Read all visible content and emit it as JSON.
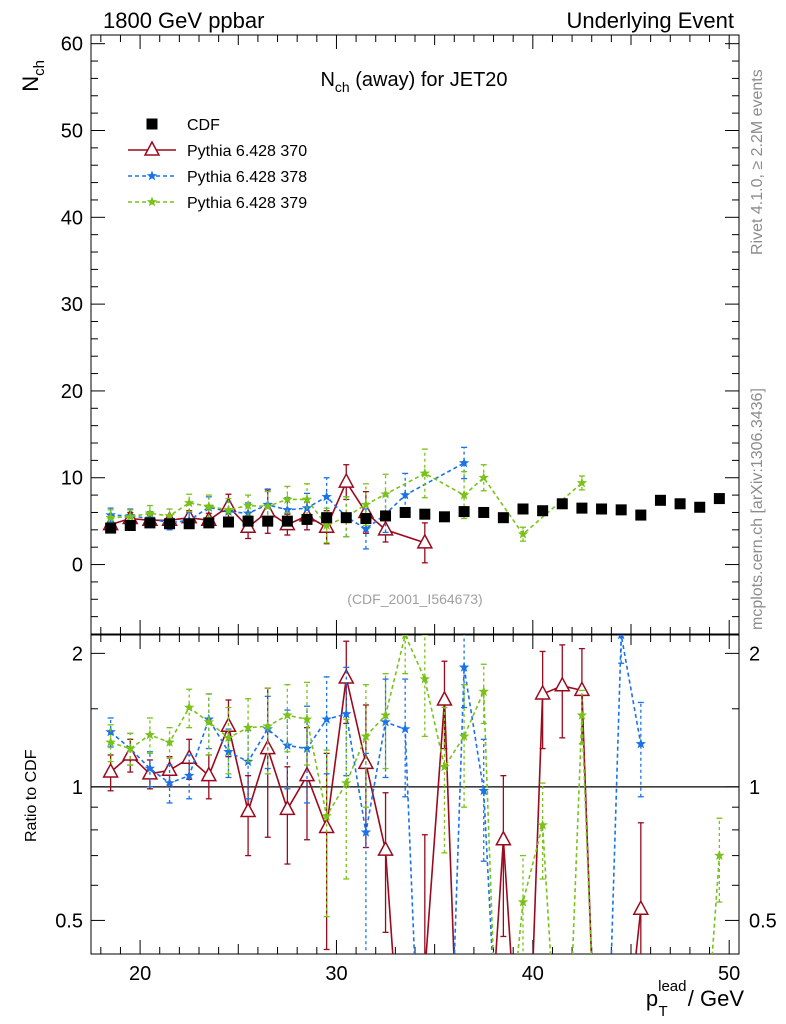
{
  "header": {
    "left": "1800 GeV ppbar",
    "right": "Underlying Event"
  },
  "side_labels": {
    "rivet": "Rivet 4.1.0, ≥ 2.2M events",
    "mcplots": "mcplots.cern.ch [arXiv:1306.3436]"
  },
  "colors": {
    "cdf": "#000000",
    "py370": "#9a0a1e",
    "py378": "#1a73e8",
    "py379": "#7ac21a"
  },
  "chart_data": [
    {
      "type": "scatter",
      "title_main": "N",
      "title_sub": "ch",
      "title_rest": " (away) for JET20",
      "ylabel_main": "N",
      "ylabel_sub": "ch",
      "analysis_id": "(CDF_2001_I564673)",
      "xlim": [
        17.5,
        50.5
      ],
      "ylim": [
        -8,
        61
      ],
      "yticks": [
        0,
        10,
        20,
        30,
        40,
        50,
        60
      ],
      "legend_position": "top-left",
      "series": [
        {
          "name": "CDF",
          "style": "data",
          "x": [
            18.5,
            19.5,
            20.5,
            21.5,
            22.5,
            23.5,
            24.5,
            25.5,
            26.5,
            27.5,
            28.5,
            29.5,
            30.5,
            31.5,
            32.5,
            33.5,
            34.5,
            35.5,
            36.5,
            37.5,
            38.5,
            39.5,
            40.5,
            41.5,
            42.5,
            43.5,
            44.5,
            45.5,
            46.5,
            47.5,
            48.5,
            49.5
          ],
          "y": [
            4.2,
            4.5,
            4.8,
            4.7,
            4.7,
            4.8,
            4.9,
            5.0,
            5.0,
            5.0,
            5.2,
            5.4,
            5.4,
            5.3,
            5.6,
            6.0,
            5.8,
            5.5,
            6.1,
            6.0,
            5.4,
            6.4,
            6.2,
            7.0,
            6.5,
            6.4,
            6.3,
            5.7,
            7.4,
            7.0,
            6.6,
            7.6
          ]
        },
        {
          "name": "Pythia 6.428 370",
          "style": "solid-triangle",
          "x": [
            18.5,
            19.5,
            20.5,
            21.5,
            22.5,
            23.5,
            24.5,
            25.5,
            26.5,
            27.5,
            28.5,
            29.5,
            30.5,
            31.5,
            32.5,
            34.5
          ],
          "y": [
            4.6,
            5.3,
            5.1,
            5.1,
            5.4,
            5.1,
            6.7,
            4.3,
            6.1,
            4.6,
            5.6,
            4.3,
            9.5,
            6.0,
            4.0,
            2.5
          ],
          "err": [
            0.8,
            0.7,
            0.6,
            0.6,
            0.8,
            0.8,
            1.4,
            1.3,
            2.5,
            1.2,
            1.6,
            1.9,
            2.0,
            2.4,
            1.4,
            2.3
          ]
        },
        {
          "name": "Pythia 6.428 378",
          "style": "dashed-star",
          "x": [
            18.5,
            19.5,
            20.5,
            21.5,
            22.5,
            23.5,
            24.5,
            25.5,
            26.5,
            27.5,
            28.5,
            29.5,
            30.5,
            31.5,
            32.5,
            33.5,
            36.5
          ],
          "y": [
            5.7,
            5.6,
            5.3,
            4.8,
            5.1,
            6.6,
            6.1,
            5.9,
            6.9,
            6.3,
            6.5,
            7.8,
            5.5,
            4.1,
            5.8,
            8.0,
            11.7
          ],
          "err": [
            0.8,
            0.8,
            0.8,
            0.8,
            0.9,
            1.2,
            1.1,
            1.2,
            1.8,
            1.4,
            1.7,
            2.2,
            2.3,
            2.3,
            2.1,
            2.5,
            1.8
          ]
        },
        {
          "name": "Pythia 6.428 379",
          "style": "dashed-star",
          "x": [
            18.5,
            19.5,
            20.5,
            21.5,
            22.5,
            23.5,
            24.5,
            25.5,
            26.5,
            27.5,
            28.5,
            29.5,
            30.5,
            31.5,
            32.5,
            34.5,
            36.5,
            37.5,
            39.5,
            42.5
          ],
          "y": [
            5.4,
            5.5,
            5.9,
            5.6,
            7.1,
            6.7,
            6.3,
            6.8,
            6.7,
            7.5,
            7.5,
            4.5,
            5.5,
            6.9,
            8.1,
            10.5,
            8.0,
            10.0,
            3.5,
            9.4
          ],
          "err": [
            0.9,
            0.8,
            0.9,
            0.8,
            1.0,
            1.3,
            1.3,
            1.2,
            1.7,
            1.5,
            1.8,
            2.0,
            2.3,
            2.4,
            2.3,
            2.8,
            2.7,
            1.5,
            0.8,
            0.8
          ]
        }
      ]
    },
    {
      "type": "line",
      "ylabel": "Ratio to CDF",
      "xlabel_main": "p",
      "xlabel_sup": "lead",
      "xlabel_sub": "T",
      "xlabel_rest": " / GeV",
      "xlim": [
        17.5,
        50.5
      ],
      "xticks": [
        20,
        30,
        40,
        50
      ],
      "ylim": [
        0.42,
        2.2
      ],
      "yticks": [
        0.5,
        1,
        2
      ],
      "reference_line": 1,
      "series": [
        {
          "name": "Pythia 6.428 370",
          "x": [
            18.5,
            19.5,
            20.5,
            21.5,
            22.5,
            23.5,
            24.5,
            25.5,
            26.5,
            27.5,
            28.5,
            29.5,
            30.5,
            31.5,
            32.5,
            34.5,
            35.5,
            38.5,
            40.5,
            41.5,
            42.5,
            45.5
          ],
          "y": [
            1.08,
            1.18,
            1.07,
            1.09,
            1.16,
            1.06,
            1.37,
            0.88,
            1.22,
            0.89,
            1.06,
            0.81,
            1.76,
            1.13,
            0.72,
            0.38,
            1.57,
            0.76,
            1.62,
            1.69,
            1.65,
            0.53
          ],
          "err": [
            0.1,
            0.1,
            0.08,
            0.08,
            0.12,
            0.12,
            0.2,
            0.18,
            0.45,
            0.22,
            0.3,
            0.38,
            0.37,
            0.4,
            0.25,
            0.4,
            0.35,
            0.3,
            0.4,
            0.4,
            0.4,
            0.3
          ]
        },
        {
          "name": "Pythia 6.428 378",
          "x": [
            18.5,
            19.5,
            20.5,
            21.5,
            22.5,
            23.5,
            24.5,
            25.5,
            26.5,
            27.5,
            28.5,
            29.5,
            30.5,
            31.5,
            32.5,
            33.5,
            36.5,
            37.5,
            44.5,
            45.5
          ],
          "y": [
            1.33,
            1.22,
            1.1,
            1.02,
            1.06,
            1.42,
            1.2,
            1.14,
            1.35,
            1.24,
            1.22,
            1.42,
            1.46,
            0.79,
            1.4,
            1.35,
            1.86,
            0.98,
            2.2,
            1.25
          ],
          "err": [
            0.1,
            0.1,
            0.1,
            0.1,
            0.12,
            0.2,
            0.15,
            0.2,
            0.25,
            0.25,
            0.3,
            0.35,
            0.4,
            0.4,
            0.35,
            0.4,
            0.35,
            0.3,
            0.3,
            0.3
          ]
        },
        {
          "name": "Pythia 6.428 379",
          "x": [
            18.5,
            19.5,
            20.5,
            21.5,
            22.5,
            23.5,
            24.5,
            25.5,
            26.5,
            27.5,
            28.5,
            29.5,
            30.5,
            31.5,
            32.5,
            33.5,
            34.5,
            35.5,
            36.5,
            37.5,
            39.5,
            40.5,
            42.5,
            49.5
          ],
          "y": [
            1.26,
            1.22,
            1.31,
            1.26,
            1.51,
            1.4,
            1.29,
            1.36,
            1.37,
            1.45,
            1.42,
            0.86,
            1.02,
            1.3,
            1.45,
            2.2,
            1.75,
            1.11,
            1.3,
            1.64,
            0.55,
            0.82,
            1.45,
            0.7
          ],
          "err": [
            0.12,
            0.1,
            0.12,
            0.1,
            0.15,
            0.22,
            0.22,
            0.22,
            0.3,
            0.25,
            0.3,
            0.35,
            0.4,
            0.4,
            0.35,
            0.4,
            0.45,
            0.4,
            0.4,
            0.25,
            0.15,
            0.2,
            0.2,
            0.15
          ]
        }
      ]
    }
  ]
}
